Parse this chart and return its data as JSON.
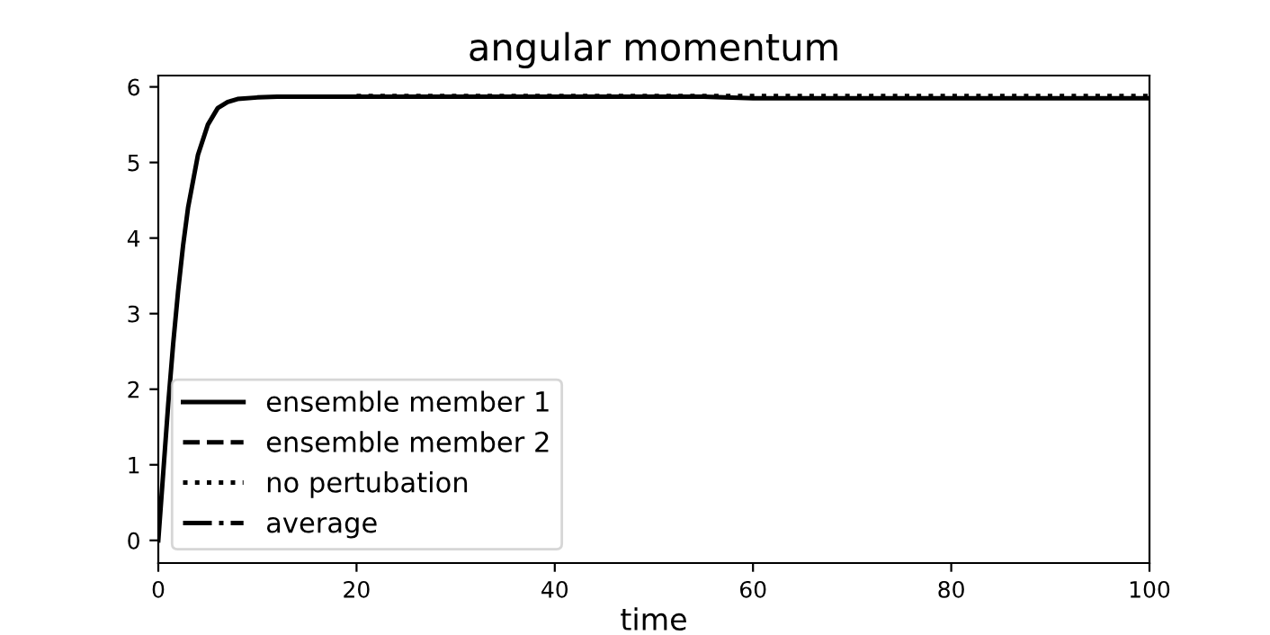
{
  "chart_data": {
    "type": "line",
    "title": "angular momentum",
    "xlabel": "time",
    "xlim": [
      0,
      100
    ],
    "xticks": [
      0,
      20,
      40,
      60,
      80,
      100
    ],
    "ylim": [
      -0.3,
      6.15
    ],
    "yticks": [
      0,
      1,
      2,
      3,
      4,
      5,
      6
    ],
    "legend": "bottom left",
    "grid": false,
    "marker": "none",
    "x": [
      0,
      0.5,
      1,
      1.5,
      2,
      2.5,
      3,
      4,
      5,
      6,
      7,
      8,
      10,
      12,
      15,
      20,
      30,
      40,
      50,
      55,
      60,
      70,
      80,
      90,
      100
    ],
    "series": [
      {
        "name": "ensemble member 1",
        "color": "#000000",
        "line_style": "solid",
        "values": [
          0,
          0.9,
          1.8,
          2.6,
          3.3,
          3.9,
          4.4,
          5.1,
          5.5,
          5.72,
          5.8,
          5.84,
          5.86,
          5.87,
          5.87,
          5.87,
          5.87,
          5.87,
          5.87,
          5.87,
          5.85,
          5.85,
          5.85,
          5.85,
          5.85
        ]
      },
      {
        "name": "ensemble member 2",
        "color": "#000000",
        "line_style": "dashed",
        "values": [
          null,
          null,
          null,
          null,
          null,
          null,
          null,
          null,
          null,
          null,
          null,
          null,
          null,
          null,
          null,
          null,
          null,
          null,
          null,
          null,
          null,
          null,
          null,
          null,
          null
        ]
      },
      {
        "name": "no pertubation",
        "color": "#000000",
        "line_style": "dotted",
        "values": [
          null,
          null,
          null,
          null,
          null,
          null,
          null,
          null,
          null,
          null,
          null,
          null,
          null,
          null,
          null,
          5.88,
          5.88,
          5.88,
          5.88,
          5.88,
          5.88,
          5.88,
          5.88,
          5.88,
          5.88
        ]
      },
      {
        "name": "average",
        "color": "#000000",
        "line_style": "dashdot",
        "values": [
          null,
          null,
          null,
          null,
          null,
          null,
          null,
          null,
          null,
          null,
          null,
          null,
          null,
          null,
          null,
          null,
          null,
          null,
          null,
          null,
          null,
          null,
          null,
          null,
          null
        ]
      }
    ]
  }
}
